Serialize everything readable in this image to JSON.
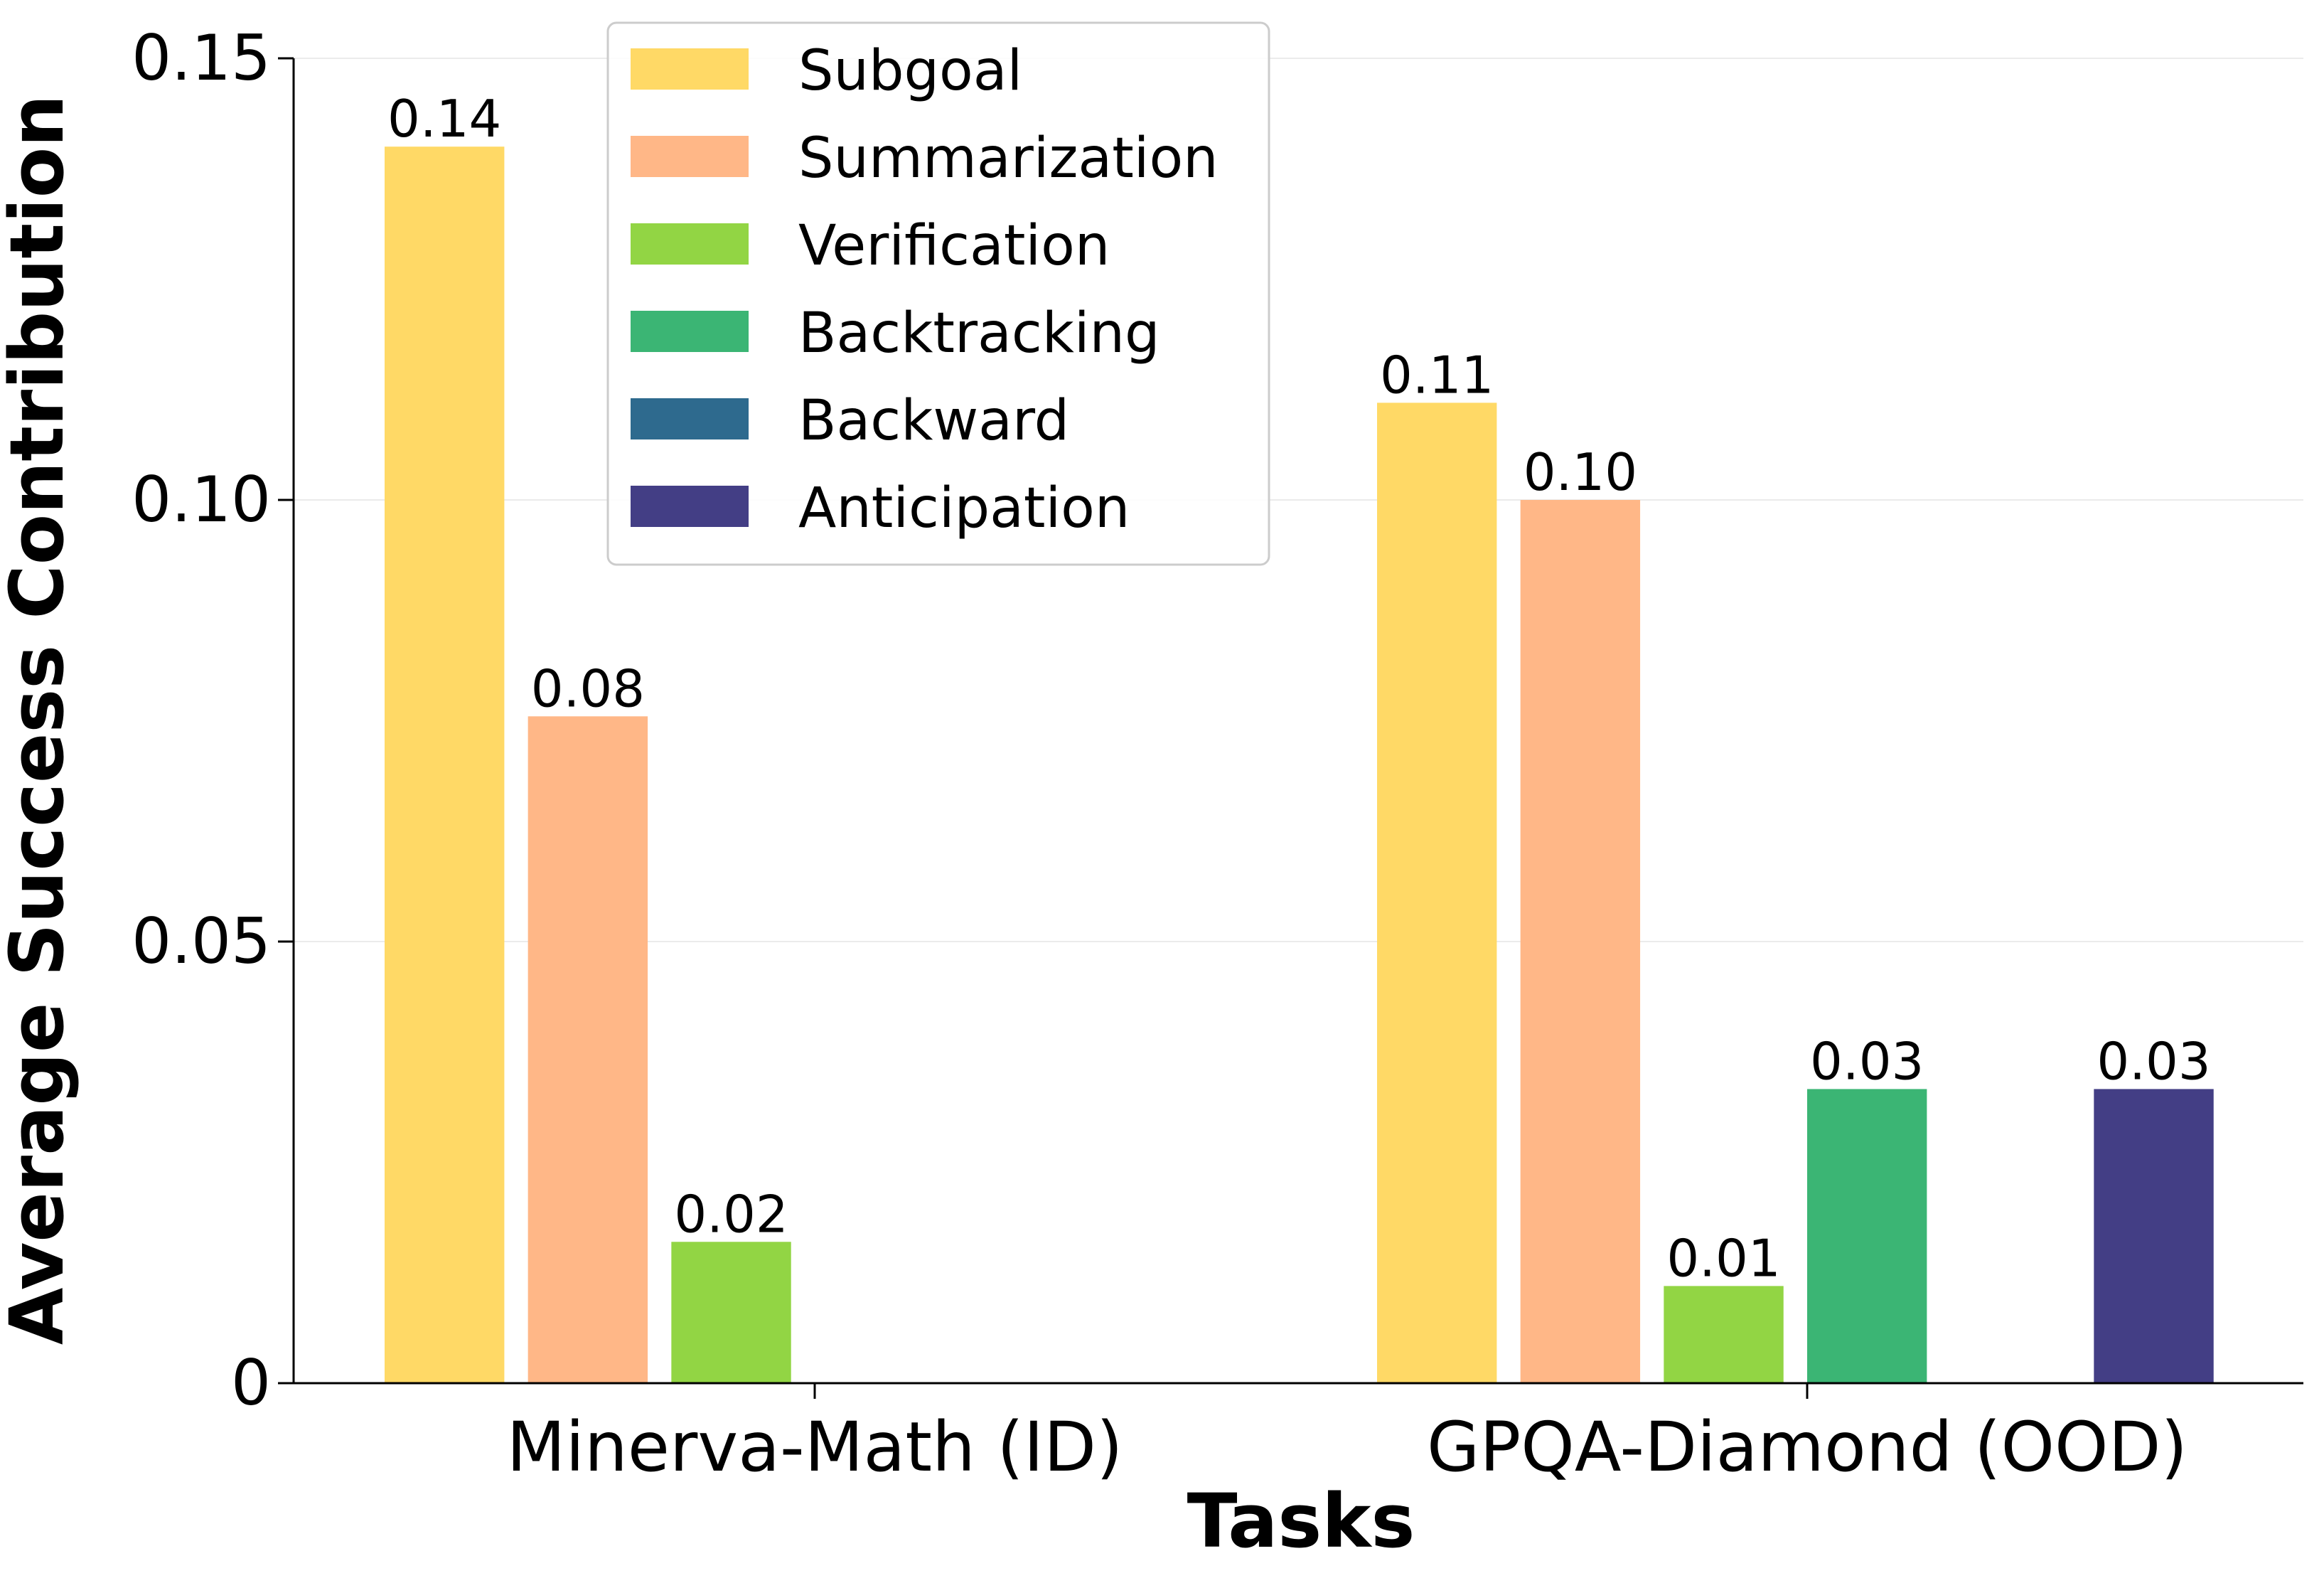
{
  "chart_data": {
    "type": "bar",
    "title": "",
    "xlabel": "Tasks",
    "ylabel": "Average Success Contribution",
    "ylim": [
      0,
      0.15
    ],
    "y_ticks": [
      {
        "value": 0,
        "label": "0"
      },
      {
        "value": 0.05,
        "label": "0.05"
      },
      {
        "value": 0.1,
        "label": "0.10"
      },
      {
        "value": 0.15,
        "label": "0.15"
      }
    ],
    "grid": "horizontal",
    "legend_position": "top-center",
    "categories": [
      "Minerva-Math (ID)",
      "GPQA-Diamond (OOD)"
    ],
    "series": [
      {
        "name": "Subgoal",
        "color": "#FFD966",
        "values": [
          0.14,
          0.111
        ],
        "labels": [
          "0.14",
          "0.11"
        ]
      },
      {
        "name": "Summarization",
        "color": "#FFB787",
        "values": [
          0.0755,
          0.1
        ],
        "labels": [
          "0.08",
          "0.10"
        ]
      },
      {
        "name": "Verification",
        "color": "#92D544",
        "values": [
          0.016,
          0.011
        ],
        "labels": [
          "0.02",
          "0.01"
        ]
      },
      {
        "name": "Backtracking",
        "color": "#3BB574",
        "values": [
          0,
          0.0333
        ],
        "labels": [
          "",
          "0.03"
        ]
      },
      {
        "name": "Backward",
        "color": "#2E6A8E",
        "values": [
          0,
          0
        ],
        "labels": [
          "",
          ""
        ]
      },
      {
        "name": "Anticipation",
        "color": "#433E85",
        "values": [
          0,
          0.0333
        ],
        "labels": [
          "",
          "0.03"
        ]
      }
    ]
  }
}
